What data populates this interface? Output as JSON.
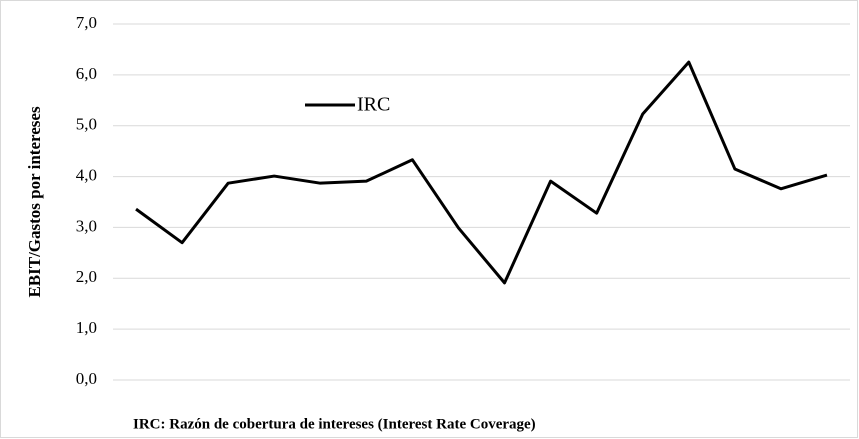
{
  "chart_data": {
    "type": "line",
    "y_label": "EBIT/Gastos por intereses",
    "note": "IRC: Razón de cobertura de intereses (Interest Rate Coverage)",
    "categories": [
      null,
      null,
      null,
      null,
      null,
      null,
      null,
      null,
      null,
      null,
      null,
      null,
      null,
      null,
      null,
      null
    ],
    "series": [
      {
        "name": "IRC",
        "color": "#000000",
        "values": [
          3.36,
          2.7,
          3.87,
          4.01,
          3.87,
          3.91,
          4.33,
          2.99,
          1.91,
          3.91,
          3.28,
          5.23,
          6.25,
          4.15,
          3.76,
          4.03
        ]
      }
    ],
    "ylim": [
      0,
      7
    ],
    "yticks": [
      {
        "value": 0,
        "label": "0,0"
      },
      {
        "value": 1,
        "label": "1,0"
      },
      {
        "value": 2,
        "label": "2,0"
      },
      {
        "value": 3,
        "label": "3,0"
      },
      {
        "value": 4,
        "label": "4,0"
      },
      {
        "value": 5,
        "label": "5,0"
      },
      {
        "value": 6,
        "label": "6,0"
      },
      {
        "value": 7,
        "label": "7,0"
      }
    ],
    "grid": true
  }
}
